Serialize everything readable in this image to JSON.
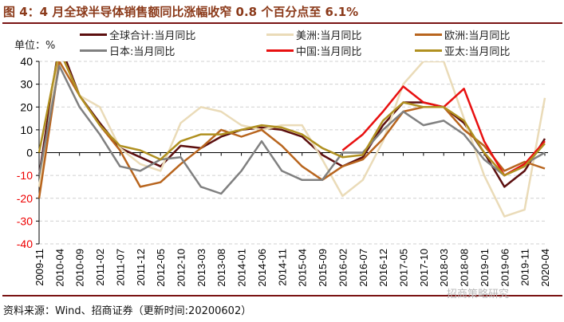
{
  "title": "图 4：4 月全球半导体销售额同比涨幅收窄 0.8 个百分点至 6.1%",
  "unit_label": "单位：%",
  "source": "资料来源：Wind、招商证券（更新时间:20200602）",
  "watermark": "招商策略研究",
  "chart_data": {
    "type": "line",
    "ylim": [
      -40,
      40
    ],
    "yticks": [
      40,
      30,
      20,
      10,
      0,
      -10,
      -20,
      -30,
      -40
    ],
    "grid": true,
    "legend_placement": "top",
    "x": [
      "2009-11",
      "2010-04",
      "2010-09",
      "2011-02",
      "2011-07",
      "2011-12",
      "2012-05",
      "2012-10",
      "2013-03",
      "2013-08",
      "2014-01",
      "2014-06",
      "2014-11",
      "2015-04",
      "2015-09",
      "2016-02",
      "2016-07",
      "2016-12",
      "2017-05",
      "2017-10",
      "2018-03",
      "2018-08",
      "2019-01",
      "2019-06",
      "2019-11",
      "2020-04"
    ],
    "series": [
      {
        "name": "全球合计:当月同比",
        "color": "#5c0f0f",
        "values": [
          -10,
          48,
          25,
          13,
          2,
          -2,
          -6,
          3,
          2,
          7,
          10,
          11,
          10,
          7,
          -1,
          -6,
          -2,
          12,
          22,
          22,
          20,
          13,
          0,
          -15,
          -8,
          6.1
        ]
      },
      {
        "name": "美洲:当月同比",
        "color": "#eadbb8",
        "values": [
          -15,
          45,
          25,
          20,
          2,
          -5,
          -8,
          13,
          20,
          18,
          12,
          10,
          12,
          12,
          -3,
          -19,
          -12,
          5,
          30,
          40,
          40,
          15,
          -10,
          -28,
          -25,
          24
        ]
      },
      {
        "name": "欧洲:当月同比",
        "color": "#b8651e",
        "values": [
          -20,
          40,
          25,
          12,
          1,
          -15,
          -13,
          -5,
          2,
          10,
          7,
          10,
          3,
          -6,
          -12,
          -6,
          -3,
          6,
          18,
          20,
          20,
          10,
          3,
          -8,
          -4,
          -7
        ]
      },
      {
        "name": "日本:当月同比",
        "color": "#808080",
        "values": [
          -10,
          38,
          20,
          8,
          -6,
          -8,
          -3,
          -2,
          -15,
          -18,
          -8,
          5,
          -8,
          -12,
          -12,
          0,
          0,
          10,
          18,
          12,
          14,
          8,
          -3,
          -10,
          -5,
          0
        ]
      },
      {
        "name": "中国:当月同比",
        "color": "#e81010",
        "values": [
          null,
          null,
          null,
          null,
          null,
          null,
          null,
          null,
          null,
          null,
          null,
          null,
          null,
          null,
          null,
          1,
          8,
          18,
          29,
          22,
          20,
          28,
          5,
          -10,
          -5,
          5
        ]
      },
      {
        "name": "亚太:当月同比",
        "color": "#b09020",
        "values": [
          0,
          45,
          25,
          12,
          3,
          1,
          -3,
          5,
          8,
          8,
          10,
          12,
          11,
          8,
          2,
          -2,
          -1,
          14,
          22,
          20,
          20,
          14,
          0,
          -10,
          -6,
          4
        ]
      }
    ]
  }
}
